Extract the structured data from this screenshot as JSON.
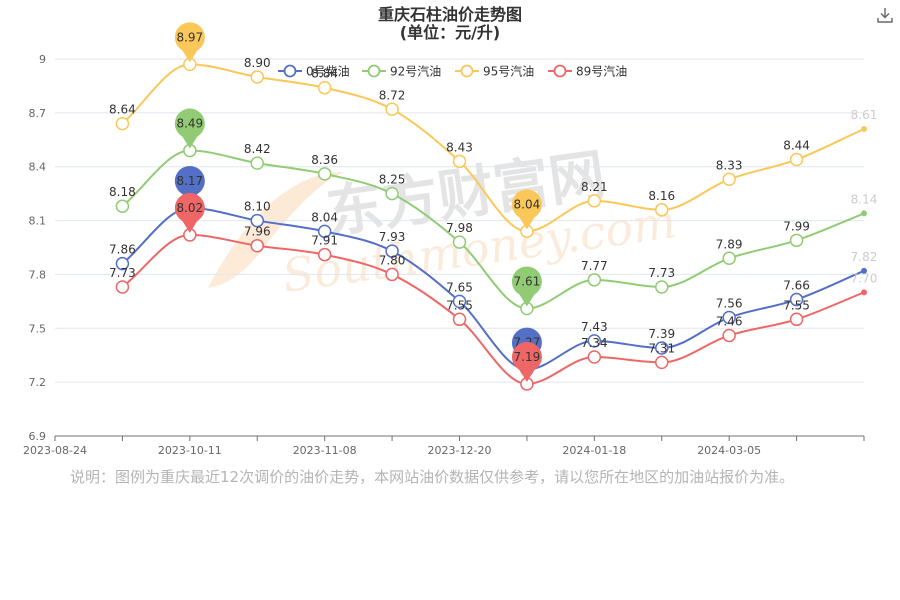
{
  "toolbar": {
    "download_icon": "download-icon"
  },
  "note": "说明：图例为重庆最近12次调价的油价走势，本网站油价数据仅供参考，请以您所在地区的加油站报价为准。",
  "watermark": {
    "cn": "东方财富网",
    "en": "Southmoney.com"
  },
  "chart_data": {
    "type": "line",
    "title": "重庆石柱油价走势图",
    "subtitle": "(单位：元/升)",
    "xlabel": "",
    "ylabel": "",
    "ylim": [
      6.9,
      9.0
    ],
    "yticks": [
      "6.9",
      "7.2",
      "7.5",
      "7.8",
      "8.1",
      "8.4",
      "8.7",
      "9"
    ],
    "x_tick_labels": [
      "2023-08-24",
      "2023-10-11",
      "2023-11-08",
      "2023-12-20",
      "2024-01-18",
      "2024-03-05"
    ],
    "grid": true,
    "legend_position": "top",
    "smooth": true,
    "series": [
      {
        "name": "0号柴油",
        "color": "#5470c6",
        "values": [
          7.86,
          8.17,
          8.1,
          8.04,
          7.93,
          7.65,
          7.27,
          7.43,
          7.39,
          7.56,
          7.66,
          7.82
        ],
        "max_index": 1,
        "min_index": 6
      },
      {
        "name": "92号汽油",
        "color": "#91cc75",
        "values": [
          8.18,
          8.49,
          8.42,
          8.36,
          8.25,
          7.98,
          7.61,
          7.77,
          7.73,
          7.89,
          7.99,
          8.14
        ],
        "max_index": 1,
        "min_index": 6
      },
      {
        "name": "95号汽油",
        "color": "#fac858",
        "values": [
          8.64,
          8.97,
          8.9,
          8.84,
          8.72,
          8.43,
          8.04,
          8.21,
          8.16,
          8.33,
          8.44,
          8.61
        ],
        "max_index": 1,
        "min_index": 6
      },
      {
        "name": "89号汽油",
        "color": "#ee6666",
        "values": [
          7.73,
          8.02,
          7.96,
          7.91,
          7.8,
          7.55,
          7.19,
          7.34,
          7.31,
          7.46,
          7.55,
          7.7
        ],
        "max_index": 1,
        "min_index": 6
      }
    ]
  }
}
